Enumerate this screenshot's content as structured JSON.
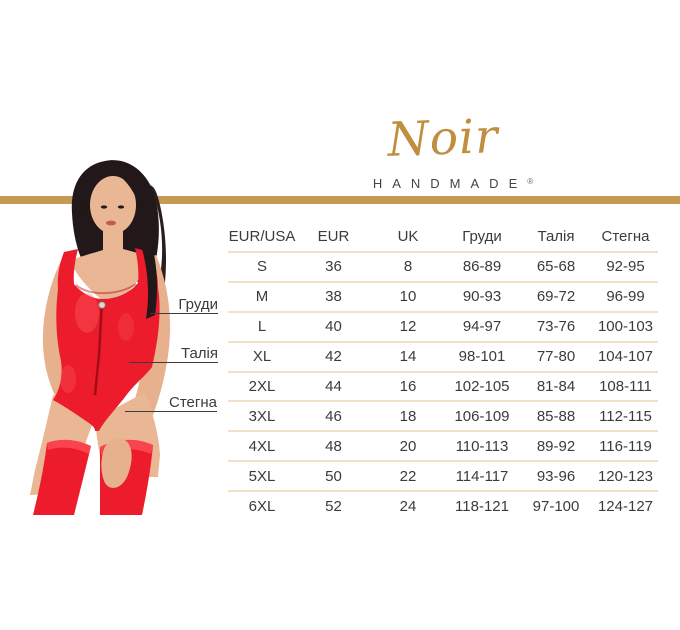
{
  "brand": {
    "script_name": "Noir",
    "wordmark": "HANDMADE",
    "registered_mark": "®",
    "gold_color": "#c49a55",
    "logo_gold_color": "#bf8e3f"
  },
  "measurements": {
    "chest": "Груди",
    "waist": "Талія",
    "hips": "Стегна"
  },
  "chart_data": {
    "type": "table",
    "columns": [
      "EUR/USA",
      "EUR",
      "UK",
      "Груди",
      "Талія",
      "Стегна"
    ],
    "rows": [
      [
        "S",
        "36",
        "8",
        "86-89",
        "65-68",
        "92-95"
      ],
      [
        "M",
        "38",
        "10",
        "90-93",
        "69-72",
        "96-99"
      ],
      [
        "L",
        "40",
        "12",
        "94-97",
        "73-76",
        "100-103"
      ],
      [
        "XL",
        "42",
        "14",
        "98-101",
        "77-80",
        "104-107"
      ],
      [
        "2XL",
        "44",
        "16",
        "102-105",
        "81-84",
        "108-111"
      ],
      [
        "3XL",
        "46",
        "18",
        "106-109",
        "85-88",
        "112-115"
      ],
      [
        "4XL",
        "48",
        "20",
        "110-113",
        "89-92",
        "116-119"
      ],
      [
        "5XL",
        "50",
        "22",
        "114-117",
        "93-96",
        "120-123"
      ],
      [
        "6XL",
        "52",
        "24",
        "118-121",
        "97-100",
        "124-127"
      ]
    ],
    "row_separator_color": "#f2e2c5",
    "text_color": "#3b3b3b",
    "grid": "horizontal-only",
    "header_position": "top"
  },
  "figure_colors": {
    "outfit_red": "#ec1c2d",
    "outfit_shadow_red": "#b90e1b",
    "hair": "#221719",
    "skin": "#eab795"
  }
}
